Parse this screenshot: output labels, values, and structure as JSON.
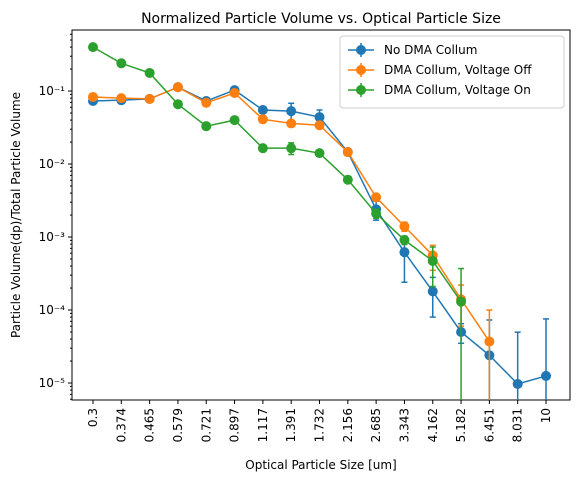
{
  "chart_data": {
    "type": "line",
    "title": "Normalized Particle Volume vs. Optical Particle Size",
    "x_label": "Optical Particle Size [um]",
    "y_label": "Particle Volume(dp)/Total Particle Volume",
    "categories": [
      "0.3",
      "0.374",
      "0.465",
      "0.579",
      "0.721",
      "0.897",
      "1.117",
      "1.391",
      "1.732",
      "2.156",
      "2.685",
      "3.343",
      "4.162",
      "5.182",
      "6.451",
      "8.031",
      "10"
    ],
    "log_scale_y": true,
    "ylim": [
      5.85e-06,
      0.686
    ],
    "yticks": [
      {
        "value": 1e-05,
        "label": "10⁻⁵"
      },
      {
        "value": 0.0001,
        "label": "10⁻⁴"
      },
      {
        "value": 0.001,
        "label": "10⁻³"
      },
      {
        "value": 0.01,
        "label": "10⁻²"
      },
      {
        "value": 0.1,
        "label": "10⁻¹"
      }
    ],
    "legend": "upper right",
    "series": [
      {
        "name": "No DMA Collum",
        "color": "#1f77b4",
        "values": [
          0.073,
          0.075,
          0.078,
          0.113,
          0.073,
          0.103,
          0.055,
          0.053,
          0.044,
          0.0146,
          0.0024,
          0.00062,
          0.00018,
          5e-05,
          2.4e-05,
          9.7e-06,
          1.25e-05
        ],
        "errors": [
          0.004,
          0.004,
          0.004,
          0.005,
          0.004,
          0.006,
          0.004,
          0.015,
          0.011,
          0.0015,
          0.0007,
          0.00038,
          0.0001,
          1.5e-05,
          4.9e-05,
          4e-05,
          6.3e-05
        ]
      },
      {
        "name": "DMA Collum, Voltage Off",
        "color": "#ff7f0e",
        "values": [
          0.083,
          0.08,
          0.078,
          0.113,
          0.069,
          0.094,
          0.041,
          0.036,
          0.034,
          0.0146,
          0.0035,
          0.0014,
          0.00056,
          0.00014,
          3.7e-05,
          null,
          null
        ],
        "errors": [
          0.004,
          0.004,
          0.004,
          0.005,
          0.004,
          0.005,
          0.003,
          0.003,
          0.003,
          0.0012,
          0.0003,
          0.0002,
          0.00021,
          8e-05,
          6.3e-05,
          null,
          null
        ]
      },
      {
        "name": "DMA Collum, Voltage On",
        "color": "#2ca02c",
        "values": [
          0.4,
          0.24,
          0.177,
          0.066,
          0.033,
          0.04,
          0.0165,
          0.0165,
          0.0141,
          0.0061,
          0.0021,
          0.00091,
          0.00047,
          0.00013,
          null,
          null,
          null
        ],
        "errors": [
          0.02,
          0.012,
          0.009,
          0.003,
          0.002,
          0.002,
          0.001,
          0.003,
          0.001,
          0.0004,
          0.0003,
          0.00012,
          0.00026,
          0.00024,
          null,
          null,
          null
        ]
      }
    ]
  }
}
